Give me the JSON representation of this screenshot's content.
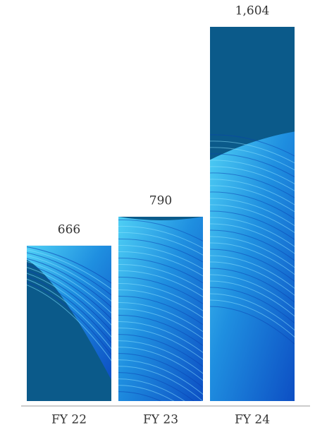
{
  "chart_data": {
    "type": "bar",
    "categories": [
      "FY 22",
      "FY 23",
      "FY 24"
    ],
    "values": [
      666,
      790,
      1604
    ],
    "value_labels": [
      "666",
      "790",
      "1,604"
    ],
    "color": "#0b5a8a"
  }
}
